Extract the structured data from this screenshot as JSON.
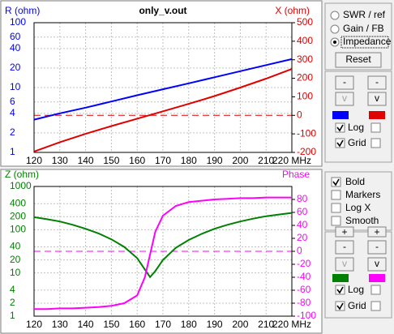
{
  "chart_data": [
    {
      "type": "line",
      "title": "only_v.out",
      "ylabel": "R (ohm)",
      "y2label": "X (ohm)",
      "x": [
        120,
        130,
        140,
        150,
        160,
        170,
        180,
        190,
        200,
        210,
        220
      ],
      "xlim": [
        120,
        220
      ],
      "xticks": [
        120,
        130,
        140,
        150,
        160,
        170,
        180,
        190,
        200,
        210,
        {
          "value": 220,
          "label": "220 MHz"
        }
      ],
      "ylim": [
        1,
        100
      ],
      "ylog": true,
      "yticks": [
        1,
        2,
        4,
        6,
        10,
        20,
        40,
        60,
        100
      ],
      "y2lim": [
        -200,
        500
      ],
      "y2ticks": [
        -200,
        -100,
        0,
        100,
        200,
        300,
        400,
        500
      ],
      "grid": true,
      "series": [
        {
          "color": "#0000ff",
          "values": [
            3.2,
            4.0,
            4.9,
            6.1,
            7.6,
            9.4,
            11.6,
            14.4,
            17.9,
            22.2,
            27.5
          ]
        },
        {
          "color": "#e00000",
          "axis": "y2",
          "values": [
            -195,
            -145,
            -100,
            -58,
            -18,
            22,
            62,
            104,
            150,
            198,
            250
          ]
        }
      ]
    },
    {
      "type": "line",
      "ylabel": "Z (ohm)",
      "y2label": "Phase",
      "x": [
        120,
        125,
        130,
        135,
        140,
        145,
        150,
        155,
        160,
        163,
        165,
        167,
        170,
        175,
        180,
        185,
        190,
        195,
        200,
        205,
        210,
        215,
        220
      ],
      "xlim": [
        120,
        220
      ],
      "xticks": [
        120,
        130,
        140,
        150,
        160,
        170,
        180,
        190,
        200,
        210,
        {
          "value": 220,
          "label": "220 MHz"
        }
      ],
      "ylim": [
        1,
        1000
      ],
      "ylog": true,
      "yticks": [
        1,
        2,
        4,
        10,
        20,
        40,
        100,
        200,
        400,
        1000
      ],
      "y2lim": [
        -100,
        100
      ],
      "y2ticks": [
        -100,
        -80,
        -60,
        -40,
        -20,
        0,
        20,
        40,
        60,
        80
      ],
      "grid": true,
      "series": [
        {
          "color": "#008000",
          "values": [
            195,
            175,
            155,
            130,
            105,
            82,
            60,
            40,
            22,
            12,
            8,
            11,
            20,
            38,
            58,
            80,
            105,
            130,
            155,
            180,
            205,
            225,
            245
          ]
        },
        {
          "color": "#ff00ff",
          "axis": "y2",
          "values": [
            -89,
            -89,
            -88,
            -88,
            -87,
            -86,
            -84,
            -80,
            -68,
            -40,
            -5,
            30,
            55,
            70,
            76,
            78,
            80,
            81,
            82,
            82,
            83,
            83,
            83
          ]
        }
      ]
    }
  ],
  "mode_options": [
    "SWR / ref",
    "Gain / FB",
    "Impedance"
  ],
  "reset_button": "Reset",
  "top_controls": {
    "buttons": [
      "-",
      "-",
      "v",
      "v"
    ],
    "checkboxes": [
      "Log",
      "Grid"
    ]
  },
  "display_options": [
    "Bold",
    "Markers",
    "Log X",
    "Smooth"
  ],
  "bottom_controls": {
    "buttons": [
      "+",
      "+",
      "-",
      "-",
      "v",
      "v"
    ],
    "checkboxes": [
      "Log",
      "Grid"
    ]
  }
}
